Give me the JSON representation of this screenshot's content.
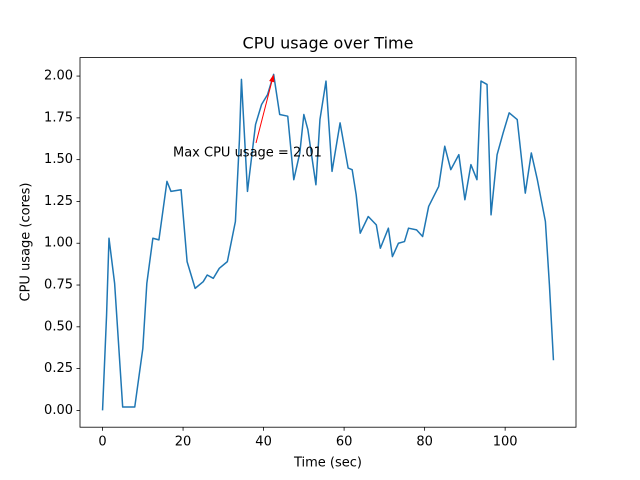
{
  "chart_data": {
    "type": "line",
    "title": "CPU usage over Time",
    "x_label": "Time (sec)",
    "y_label": "CPU usage (cores)",
    "x": [
      0,
      1,
      1.6,
      3,
      5,
      8,
      10,
      11,
      12.5,
      14,
      16,
      17,
      19.5,
      21,
      23,
      25,
      26,
      27.5,
      29,
      31,
      33,
      34,
      34.5,
      36,
      38,
      39.5,
      41,
      42.5,
      44,
      46,
      47.5,
      49,
      50,
      51,
      53,
      54,
      55.5,
      57,
      59,
      61,
      62,
      63,
      64,
      66,
      68,
      69,
      71,
      72,
      73.5,
      75,
      76,
      78,
      79.5,
      81,
      83.5,
      85,
      86.5,
      88.5,
      90,
      91.5,
      93,
      94,
      95.5,
      96.5,
      98,
      99.5,
      101,
      103,
      105,
      106.5,
      108,
      110,
      111,
      112
    ],
    "values": [
      0,
      0.57,
      1.03,
      0.76,
      0.02,
      0.02,
      0.37,
      0.76,
      1.03,
      1.02,
      1.37,
      1.31,
      1.32,
      0.89,
      0.73,
      0.77,
      0.81,
      0.79,
      0.85,
      0.89,
      1.13,
      1.62,
      1.98,
      1.31,
      1.71,
      1.83,
      1.89,
      2.01,
      1.77,
      1.76,
      1.38,
      1.54,
      1.77,
      1.68,
      1.35,
      1.74,
      1.97,
      1.43,
      1.72,
      1.45,
      1.44,
      1.29,
      1.06,
      1.16,
      1.11,
      0.97,
      1.09,
      0.92,
      1.0,
      1.01,
      1.09,
      1.08,
      1.04,
      1.22,
      1.34,
      1.58,
      1.44,
      1.53,
      1.26,
      1.47,
      1.38,
      1.97,
      1.95,
      1.17,
      1.53,
      1.66,
      1.78,
      1.74,
      1.3,
      1.54,
      1.38,
      1.13,
      0.75,
      0.3
    ],
    "color": "#1f77b4",
    "xlim": [
      -5.6,
      117.6
    ],
    "ylim": [
      -0.1005,
      2.1105
    ],
    "xticks": [
      0,
      20,
      40,
      60,
      80,
      100
    ],
    "yticks": [
      {
        "value": 0,
        "label": "0.00"
      },
      {
        "value": 0.25,
        "label": "0.25"
      },
      {
        "value": 0.5,
        "label": "0.50"
      },
      {
        "value": 0.75,
        "label": "0.75"
      },
      {
        "value": 1,
        "label": "1.00"
      },
      {
        "value": 1.25,
        "label": "1.25"
      },
      {
        "value": 1.5,
        "label": "1.50"
      },
      {
        "value": 1.75,
        "label": "1.75"
      },
      {
        "value": 2,
        "label": "2.00"
      }
    ],
    "annotation": {
      "text": "Max CPU usage = 2.01",
      "color": "#ff0000"
    }
  }
}
